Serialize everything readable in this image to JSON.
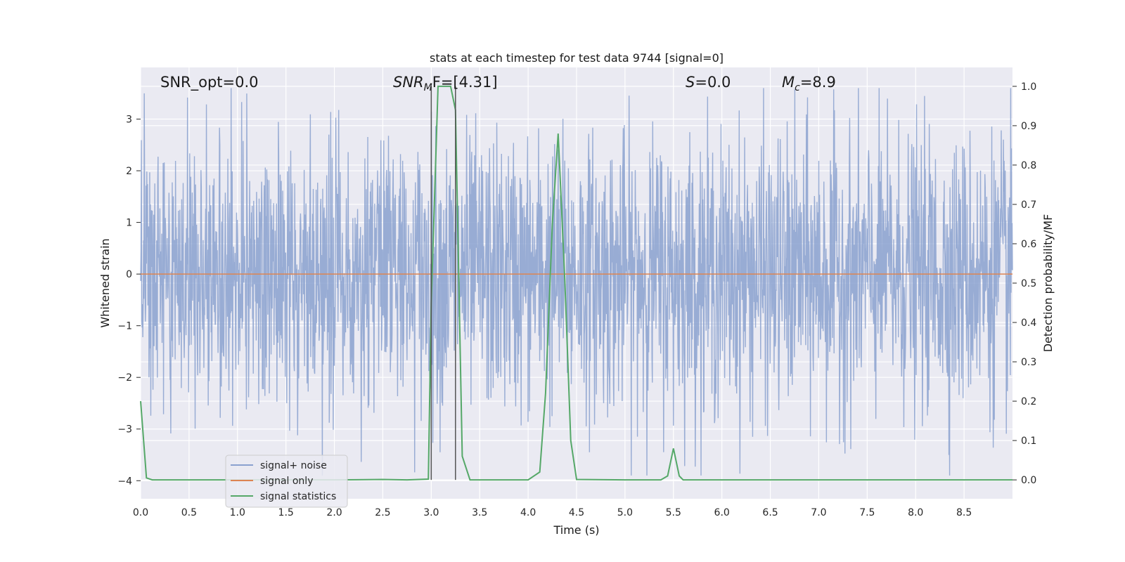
{
  "chart_data": {
    "type": "line",
    "title": "stats at each timestep for test data 9744 [signal=0]",
    "xlabel": "Time (s)",
    "ylabel": "Whitened strain",
    "y2label": "Detection probability/MF",
    "xlim": [
      0.0,
      9.0
    ],
    "ylim": [
      -4.35,
      4.0
    ],
    "y2lim": [
      -0.048,
      1.048
    ],
    "x_ticks": [
      "0.0",
      "0.5",
      "1.0",
      "1.5",
      "2.0",
      "2.5",
      "3.0",
      "3.5",
      "4.0",
      "4.5",
      "5.0",
      "5.5",
      "6.0",
      "6.5",
      "7.0",
      "7.5",
      "8.0",
      "8.5"
    ],
    "y_ticks": [
      "3",
      "2",
      "1",
      "0",
      "−1",
      "−2",
      "−3",
      "−4"
    ],
    "y2_ticks": [
      "1.0",
      "0.9",
      "0.8",
      "0.7",
      "0.6",
      "0.5",
      "0.4",
      "0.3",
      "0.2",
      "0.1",
      "0.0"
    ],
    "grid": true,
    "legend_position": "lower-left",
    "annotations": {
      "snr_opt": "SNR_opt=0.0",
      "snr_mf_prefix": "SNR",
      "snr_mf_sub": "M",
      "snr_mf_suffix": "F=[4.31]",
      "s_label": "S",
      "s_value": "=0.0",
      "mc_label": "M",
      "mc_sub": "c",
      "mc_value": "=8.9"
    },
    "vlines": [
      3.0,
      3.25
    ],
    "series": [
      {
        "name": "signal+ noise",
        "color": "#8aa1cf",
        "kind": "noise",
        "sample_count": 2400,
        "typical_std": 0.85,
        "approx_range": [
          -3.9,
          3.6
        ]
      },
      {
        "name": "signal only",
        "color": "#dd8452",
        "x": [
          0.0,
          9.0
        ],
        "y": [
          0.0,
          0.0
        ]
      },
      {
        "name": "signal statistics",
        "color": "#55a868",
        "axis": "right",
        "x": [
          0.0,
          0.06,
          0.12,
          0.5,
          1.0,
          1.5,
          2.0,
          2.5,
          2.75,
          2.97,
          3.0,
          3.07,
          3.2,
          3.25,
          3.32,
          3.4,
          3.5,
          4.0,
          4.12,
          4.18,
          4.25,
          4.31,
          4.38,
          4.44,
          4.5,
          5.0,
          5.37,
          5.44,
          5.5,
          5.56,
          5.6,
          6.0,
          7.0,
          8.0,
          9.0
        ],
        "y": [
          0.2,
          0.005,
          0.0,
          0.0,
          0.0,
          0.0,
          0.0,
          0.001,
          0.0,
          0.002,
          0.45,
          1.0,
          1.0,
          0.94,
          0.06,
          0.0,
          0.0,
          0.0,
          0.02,
          0.22,
          0.65,
          0.88,
          0.5,
          0.1,
          0.001,
          0.0,
          0.0,
          0.01,
          0.08,
          0.01,
          0.0,
          0.0,
          0.0,
          0.0,
          0.0
        ]
      }
    ]
  }
}
